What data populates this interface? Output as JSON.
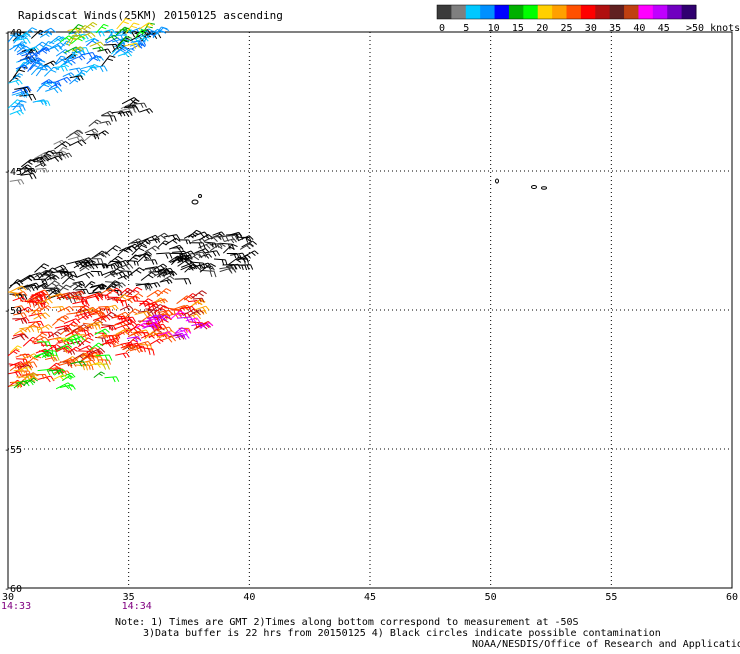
{
  "title": "Rapidscat Winds(25KM) 20150125 ascending",
  "legend": {
    "colors": [
      "#3b3b3b",
      "#7f7f7f",
      "#00c8ff",
      "#0090ff",
      "#0000ff",
      "#00b000",
      "#00ff00",
      "#ffd000",
      "#ffa000",
      "#ff5000",
      "#ff0000",
      "#b01010",
      "#602020",
      "#c04010",
      "#ff00ff",
      "#c000ff",
      "#7000c0",
      "#300070"
    ],
    "labels": [
      "0",
      "5",
      "10",
      "15",
      "20",
      "25",
      "30",
      "35",
      "40",
      "45",
      ">50 knots"
    ]
  },
  "map": {
    "lon_range": [
      30,
      60
    ],
    "lat_range": [
      -40,
      -60
    ],
    "y_ticks": [
      "-40",
      "-45",
      "-50",
      "-55",
      "-60"
    ],
    "x_ticks": [
      "30",
      "35",
      "40",
      "45",
      "50",
      "55",
      "60"
    ],
    "pass_times": [
      {
        "lon": 30,
        "time": "14:33"
      },
      {
        "lon": 35,
        "time": "14:34"
      }
    ]
  },
  "notes": {
    "line1": "Note: 1) Times are GMT 2)Times along bottom correspond to measurement at -50S",
    "line2": "3)Data buffer is 22 hrs from 20150125 4) Black circles indicate possible contamination",
    "line3": "NOAA/NESDIS/Office of Research and Applications"
  }
}
